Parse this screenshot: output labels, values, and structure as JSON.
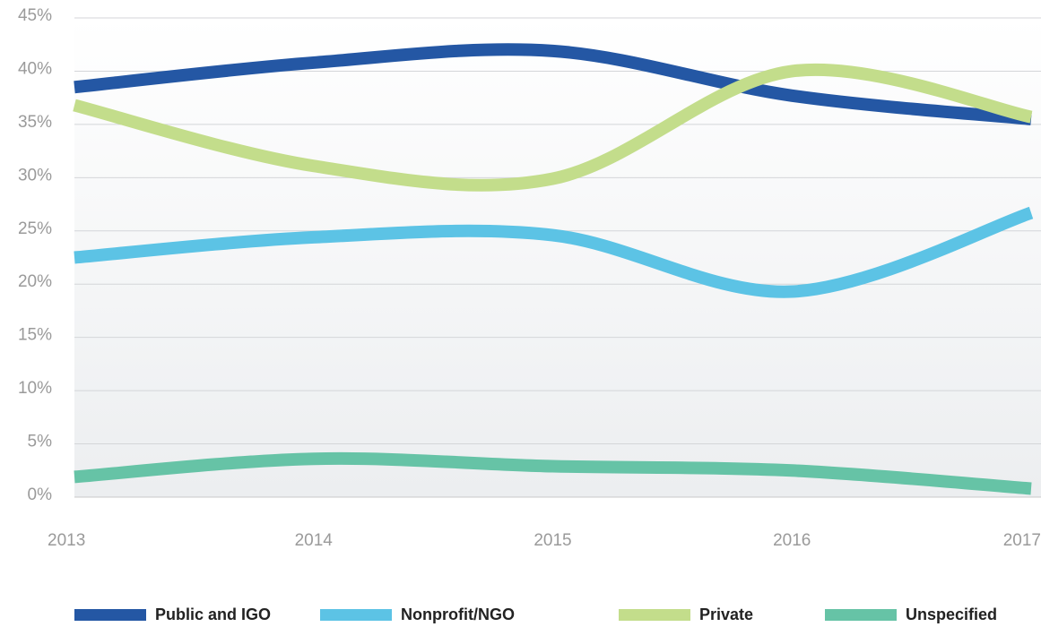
{
  "chart_data": {
    "type": "line",
    "x": [
      2013,
      2014,
      2015,
      2016,
      2017
    ],
    "xlim": [
      2013,
      2017
    ],
    "xticks": [
      2013,
      2014,
      2015,
      2016,
      2017
    ],
    "ylim": [
      0,
      45
    ],
    "yticks": [
      {
        "value": 0,
        "label": "0%"
      },
      {
        "value": 5,
        "label": "5%"
      },
      {
        "value": 10,
        "label": "10%"
      },
      {
        "value": 15,
        "label": "15%"
      },
      {
        "value": 20,
        "label": "20%"
      },
      {
        "value": 25,
        "label": "25%"
      },
      {
        "value": 30,
        "label": "30%"
      },
      {
        "value": 35,
        "label": "35%"
      },
      {
        "value": 40,
        "label": "40%"
      },
      {
        "value": 45,
        "label": "45%"
      }
    ],
    "grid": true,
    "legend": "bottom",
    "series": [
      {
        "name": "Public and IGO",
        "color": "#2457a4",
        "values": [
          38.5,
          40.8,
          41.9,
          37.7,
          35.5
        ]
      },
      {
        "name": "Nonprofit/NGO",
        "color": "#5cc3e5",
        "values": [
          22.5,
          24.4,
          24.6,
          19.3,
          26.7
        ]
      },
      {
        "name": "Private",
        "color": "#c3dd8b",
        "values": [
          36.8,
          31.1,
          29.9,
          40.0,
          35.7
        ]
      },
      {
        "name": "Unspecified",
        "color": "#66c3a6",
        "values": [
          1.9,
          3.6,
          2.9,
          2.5,
          0.8
        ]
      }
    ]
  }
}
